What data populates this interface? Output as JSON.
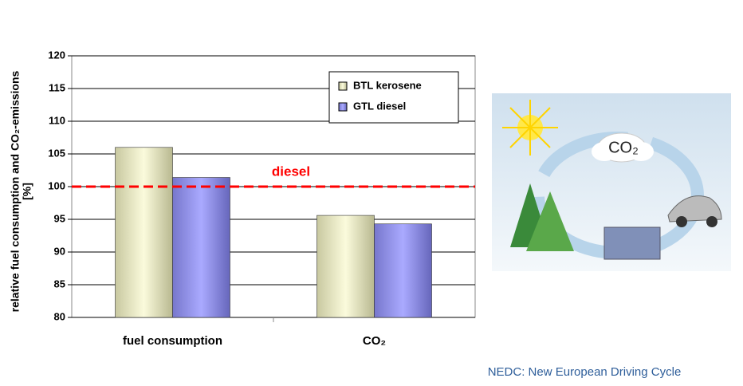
{
  "chart_data": {
    "type": "bar",
    "y_label": [
      "relative fuel consumption and CO₂-emissions",
      "[%]"
    ],
    "categories": [
      "fuel consumption",
      "CO₂"
    ],
    "series": [
      {
        "name": "BTL kerosene",
        "color": "#e8e8b8",
        "values": [
          106,
          95.6
        ]
      },
      {
        "name": "GTL diesel",
        "color": "#9999ee",
        "values": [
          101.4,
          94.3
        ]
      }
    ],
    "ylim": [
      80,
      120
    ],
    "yticks": [
      80,
      85,
      90,
      95,
      100,
      105,
      110,
      115,
      120
    ],
    "grid": true,
    "legend": "upper right",
    "reference_line": {
      "value": 100,
      "label": "diesel",
      "color": "#ff0000"
    }
  },
  "illustration": {
    "label": "CO₂"
  },
  "footnote": "NEDC: New European Driving Cycle"
}
